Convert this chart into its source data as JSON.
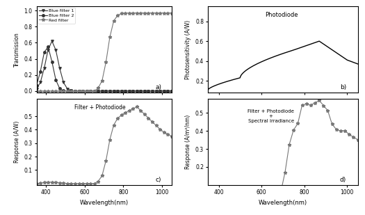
{
  "title_a": "a)",
  "title_b": "b)",
  "title_c": "c)",
  "title_d": "d)",
  "xlabel": "Wavelength(nm)",
  "ylabel_a": "Transmission",
  "ylabel_b": "Photosensitivity (A/W)",
  "ylabel_c": "Response (A/W)",
  "ylabel_d": "Response (A/m²/nm)",
  "label_a_text": "Filter + Photodiode",
  "label_b_text": "Photodiode",
  "label_c_text": "Filter + Photodiode\n+\nSpectral irradiance",
  "legend_entries": [
    "Blue filter 1",
    "Blue filter 2",
    "Red filter"
  ],
  "background": "#ffffff",
  "gray": "#777777",
  "darkgray": "#333333"
}
